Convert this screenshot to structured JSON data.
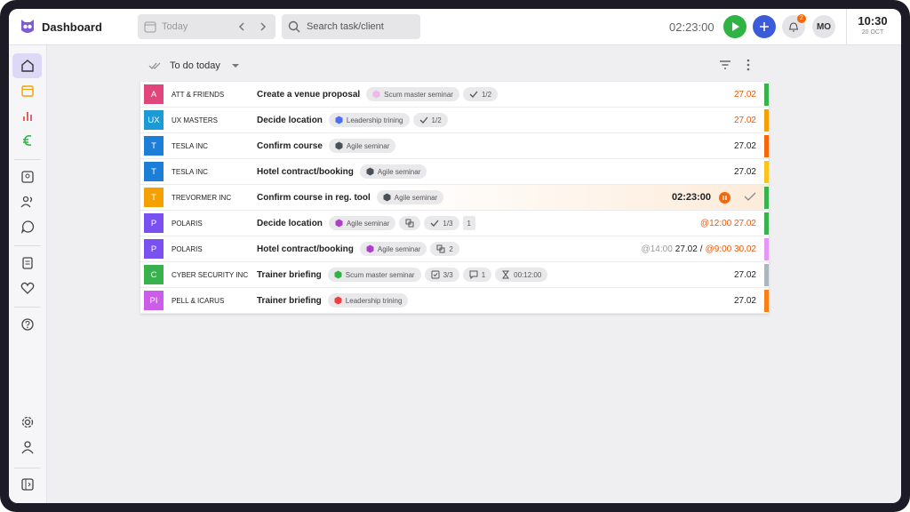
{
  "header": {
    "title": "Dashboard",
    "date": "Today",
    "search": "Search task/client",
    "timer": "02:23:00",
    "notifications": "2",
    "avatar": "MO",
    "time": "10:30",
    "day": "20 OCT"
  },
  "list": {
    "title": "To do today"
  },
  "tasks": [
    {
      "badge": "A",
      "badge_color": "#e0457b",
      "client": "ATT & FRIENDS",
      "task": "Create a venue proposal",
      "tag": {
        "label": "Scum master seminar",
        "color": "#f0b8e8"
      },
      "chips": [
        {
          "icon": "check",
          "text": "1/2"
        }
      ],
      "due": [
        {
          "text": "27.02",
          "color": "#e8590c"
        }
      ],
      "stripe": "#37b24d"
    },
    {
      "badge": "UX",
      "badge_color": "#1c9ad6",
      "client": "UX MASTERS",
      "task": "Decide location",
      "tag": {
        "label": "Leadership trining",
        "color": "#4c6ef5"
      },
      "chips": [
        {
          "icon": "check",
          "text": "1/2"
        }
      ],
      "due": [
        {
          "text": "27.02",
          "color": "#e8590c"
        }
      ],
      "stripe": "#f59f00"
    },
    {
      "badge": "T",
      "badge_color": "#1c7ed6",
      "client": "TESLA INC",
      "task": "Confirm course",
      "tag": {
        "label": "Agile seminar",
        "color": "#495057"
      },
      "chips": [],
      "due": [
        {
          "text": "27.02",
          "color": "#222"
        }
      ],
      "stripe": "#f76707"
    },
    {
      "badge": "T",
      "badge_color": "#1c7ed6",
      "client": "TESLA INC",
      "task": "Hotel contract/booking",
      "tag": {
        "label": "Agile seminar",
        "color": "#495057"
      },
      "chips": [],
      "due": [
        {
          "text": "27.02",
          "color": "#222"
        }
      ],
      "stripe": "#fcc419"
    },
    {
      "badge": "T",
      "badge_color": "#f59f00",
      "client": "TREVORMER INC",
      "task": "Confirm course in reg. tool",
      "tag": {
        "label": "Agile seminar",
        "color": "#495057"
      },
      "chips": [],
      "timer": "02:23:00",
      "stripe": "#37b24d"
    },
    {
      "badge": "P",
      "badge_color": "#7950f2",
      "client": "POLARIS",
      "task": "Decide location",
      "tag": {
        "label": "Agile seminar",
        "color": "#ae3ec9"
      },
      "chips": [
        {
          "icon": "link"
        },
        {
          "icon": "check",
          "text": "1/3"
        },
        {
          "icon": "none",
          "text": "1"
        }
      ],
      "due": [
        {
          "text": "@12:00 27.02",
          "color": "#e8590c"
        }
      ],
      "stripe": "#37b24d"
    },
    {
      "badge": "P",
      "badge_color": "#7950f2",
      "client": "POLARIS",
      "task": "Hotel contract/booking",
      "tag": {
        "label": "Agile seminar",
        "color": "#ae3ec9"
      },
      "chips": [
        {
          "icon": "link",
          "text": "2"
        }
      ],
      "due": [
        {
          "text": "@14:00",
          "color": "#999"
        },
        {
          "text": "27.02",
          "color": "#222"
        },
        {
          "text": "/",
          "color": "#222"
        },
        {
          "text": "@9:00 30.02",
          "color": "#e8590c"
        }
      ],
      "stripe": "#e599f7"
    },
    {
      "badge": "C",
      "badge_color": "#37b24d",
      "client": "CYBER SECURITY INC",
      "task": "Trainer briefing",
      "tag": {
        "label": "Scum master seminar",
        "color": "#2fb344"
      },
      "chips": [
        {
          "icon": "list",
          "text": "3/3"
        },
        {
          "icon": "comment",
          "text": "1"
        },
        {
          "icon": "hourglass",
          "text": "00:12:00"
        }
      ],
      "due": [
        {
          "text": "27.02",
          "color": "#222"
        }
      ],
      "stripe": "#adb5bd"
    },
    {
      "badge": "PI",
      "badge_color": "#cc5de8",
      "client": "PELL & ICARUS",
      "task": "Trainer briefing",
      "tag": {
        "label": "Leadership trining",
        "color": "#f03e3e"
      },
      "chips": [],
      "due": [
        {
          "text": "27.02",
          "color": "#222"
        }
      ],
      "stripe": "#fd7e14"
    }
  ]
}
